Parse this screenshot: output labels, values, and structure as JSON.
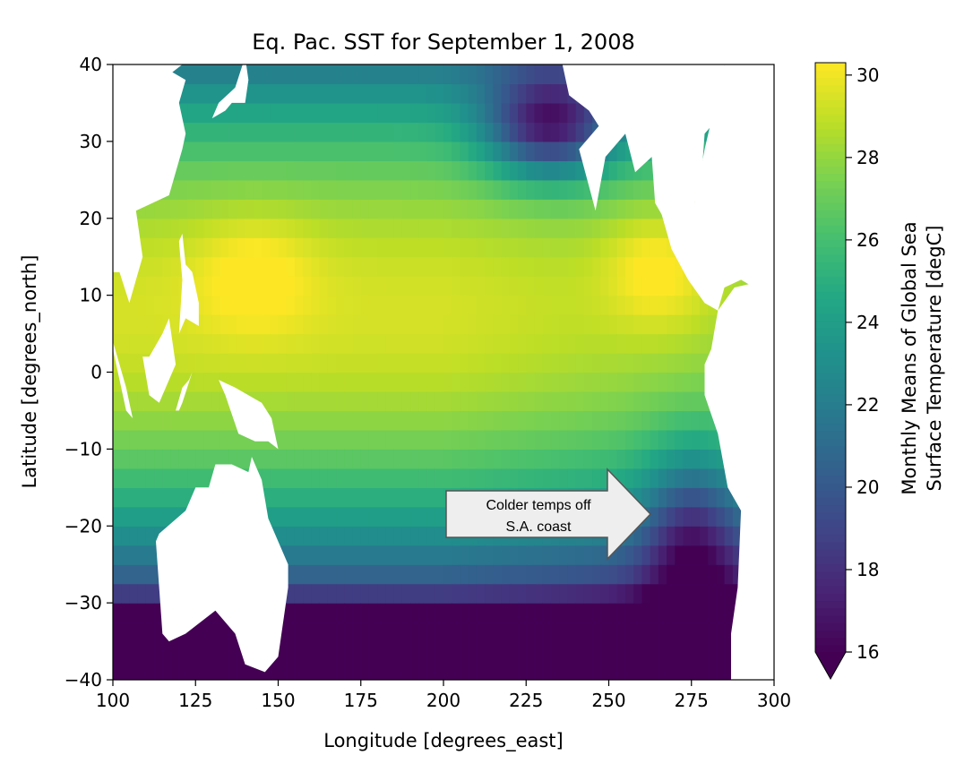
{
  "chart_data": {
    "type": "heatmap",
    "title": "Eq. Pac. SST for September 1, 2008",
    "xlabel": "Longitude [degrees_east]",
    "ylabel": "Latitude [degrees_north]",
    "xlim": [
      100,
      300
    ],
    "ylim": [
      -40,
      40
    ],
    "xticks": [
      100,
      125,
      150,
      175,
      200,
      225,
      250,
      275,
      300
    ],
    "yticks": [
      -40,
      -30,
      -20,
      -10,
      0,
      10,
      20,
      30,
      40
    ],
    "colormap": "viridis",
    "colorbar": {
      "label_line1": "Monthly Means of Global Sea",
      "label_line2": "Surface Temperature [degC]",
      "range": [
        16,
        30.3
      ],
      "ticks": [
        16,
        18,
        20,
        22,
        24,
        26,
        28,
        30
      ],
      "extend": "min"
    },
    "grid": false,
    "annotation": {
      "text_line1": "Colder temps off",
      "text_line2": "S.A. coast",
      "points_to": [
        265,
        -18
      ]
    }
  },
  "colors": {
    "land": "#ffffff",
    "arrow_fill": "#eeeeee",
    "arrow_stroke": "#555555"
  }
}
